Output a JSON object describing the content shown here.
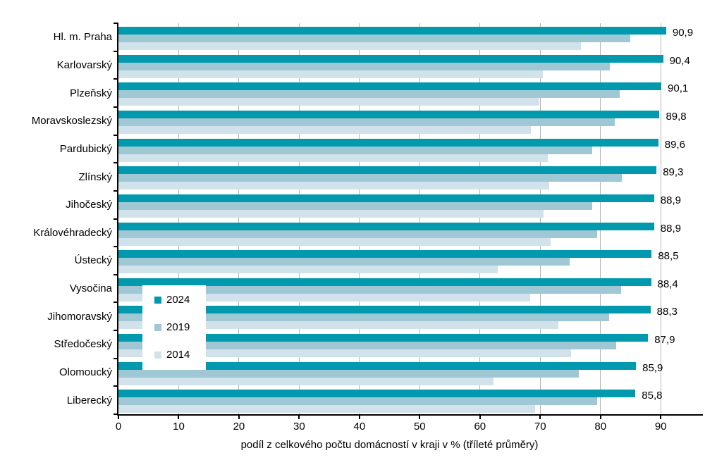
{
  "chart_data": {
    "type": "bar",
    "orientation": "horizontal",
    "title": "",
    "xlabel": "podíl z celkového počtu domácností v kraji v % (tříleté průměry)",
    "xlim": [
      0,
      97
    ],
    "x_ticks": [
      0,
      10,
      20,
      30,
      40,
      50,
      60,
      70,
      80,
      90
    ],
    "grid": "vertical gridlines every 10",
    "legend_position": "inside lower-left of plot",
    "value_label_decimal_separator": ",",
    "categories": [
      "Hl. m. Praha",
      "Karlovarský",
      "Plzeňský",
      "Moravskoslezský",
      "Pardubický",
      "Zlínský",
      "Jihočeský",
      "Královéhradecký",
      "Ústecký",
      "Vysočina",
      "Jihomoravský",
      "Středočeský",
      "Olomoucký",
      "Liberecký"
    ],
    "series": [
      {
        "name": "2024",
        "color": "#0099ad",
        "values": [
          90.9,
          90.4,
          90.1,
          89.8,
          89.6,
          89.3,
          88.9,
          88.9,
          88.5,
          88.4,
          88.3,
          87.9,
          85.9,
          85.8
        ],
        "labels": [
          "90,9",
          "90,4",
          "90,1",
          "89,8",
          "89,6",
          "89,3",
          "88,9",
          "88,9",
          "88,5",
          "88,4",
          "88,3",
          "87,9",
          "85,9",
          "85,8"
        ]
      },
      {
        "name": "2019",
        "color": "#a0c7d4",
        "values": [
          85.0,
          81.6,
          83.2,
          82.4,
          78.6,
          83.6,
          78.6,
          79.4,
          74.9,
          83.4,
          81.4,
          82.6,
          76.4,
          79.5
        ]
      },
      {
        "name": "2014",
        "color": "#d2e2ea",
        "values": [
          76.8,
          70.4,
          69.8,
          68.5,
          71.3,
          71.5,
          70.6,
          71.7,
          63.0,
          68.3,
          73.0,
          75.1,
          62.2,
          69.1
        ]
      }
    ],
    "colors": {
      "axis": "#000000",
      "gridline": "#b5b5b5",
      "text": "#000000",
      "background": "#ffffff"
    }
  }
}
